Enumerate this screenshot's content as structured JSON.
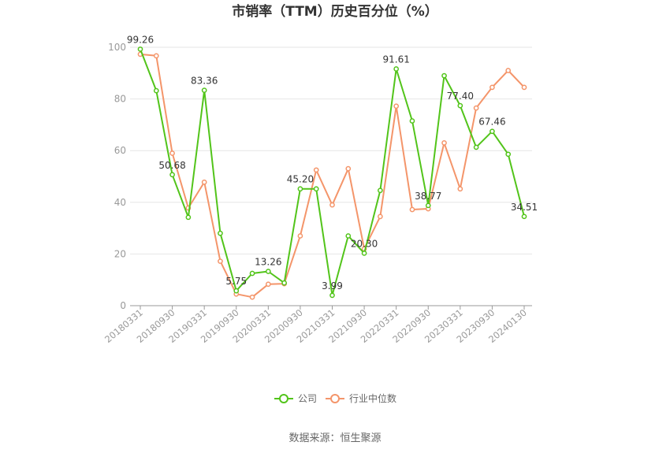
{
  "chart_data": {
    "type": "line",
    "title": "市销率（TTM）历史百分位（%）",
    "source": "数据来源：恒生聚源",
    "xlabel": "",
    "ylabel": "",
    "ylim": [
      0,
      100
    ],
    "yticks": [
      0,
      20,
      40,
      60,
      80,
      100
    ],
    "grid": true,
    "legend_position": "bottom",
    "x": [
      "20180331",
      "20180630",
      "20180930",
      "20181231",
      "20190331",
      "20190630",
      "20190930",
      "20191231",
      "20200331",
      "20200630",
      "20200930",
      "20201231",
      "20210331",
      "20210630",
      "20210930",
      "20211231",
      "20220331",
      "20220630",
      "20220930",
      "20221231",
      "20230331",
      "20230630",
      "20230930",
      "20231231",
      "20240130"
    ],
    "x_tick_labels": [
      "20180331",
      "20180930",
      "20190331",
      "20190930",
      "20200331",
      "20200930",
      "20210331",
      "20210930",
      "20220331",
      "20220930",
      "20230331",
      "20230930",
      "20240130"
    ],
    "series": [
      {
        "name": "公司",
        "color": "#52c41a",
        "values": [
          99.26,
          83.2,
          50.68,
          34.2,
          83.36,
          28.0,
          5.75,
          12.5,
          13.26,
          8.8,
          45.2,
          45.2,
          3.99,
          27.0,
          20.3,
          44.6,
          91.61,
          71.5,
          38.77,
          89.0,
          77.4,
          61.3,
          67.46,
          58.6,
          34.51
        ],
        "labels": {
          "0": "99.26",
          "2": "50.68",
          "4": "83.36",
          "6": "5.75",
          "8": "13.26",
          "10": "45.20",
          "12": "3.99",
          "14": "20.30",
          "16": "91.61",
          "18": "38.77",
          "20": "77.40",
          "22": "67.46",
          "24": "34.51"
        }
      },
      {
        "name": "行业中位数",
        "color": "#f4956a",
        "values": [
          97.3,
          96.7,
          59.0,
          37.8,
          47.8,
          17.2,
          4.5,
          3.3,
          8.3,
          8.5,
          27.0,
          52.5,
          39.0,
          53.0,
          22.0,
          34.5,
          77.2,
          37.2,
          37.5,
          63.0,
          45.2,
          76.5,
          84.5,
          91.0,
          84.5
        ]
      }
    ]
  }
}
